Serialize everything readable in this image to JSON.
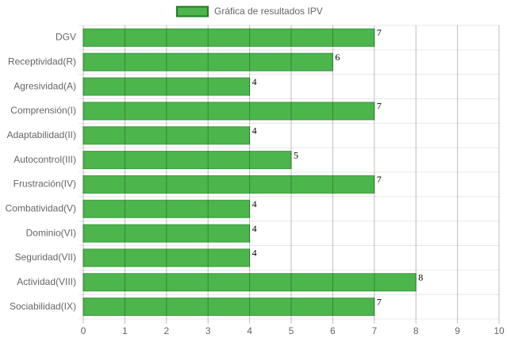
{
  "chart_data": {
    "type": "bar",
    "orientation": "horizontal",
    "categories": [
      "DGV",
      "Receptividad(R)",
      "Agresividad(A)",
      "Comprensión(I)",
      "Adaptabilidad(II)",
      "Autocontrol(III)",
      "Frustración(IV)",
      "Combatividad(V)",
      "Dominio(VI)",
      "Seguridad(VII)",
      "Actividad(VIII)",
      "Sociabilidad(IX)"
    ],
    "series": [
      {
        "name": "Gráfica de resultados IPV",
        "color": "#4cb54c",
        "values": [
          7,
          6,
          4,
          7,
          4,
          5,
          7,
          4,
          4,
          4,
          8,
          7
        ]
      }
    ],
    "xlim": [
      0,
      10
    ],
    "xticks": [
      0,
      1,
      2,
      3,
      4,
      5,
      6,
      7,
      8,
      9,
      10
    ],
    "grid": true,
    "legend": "top"
  }
}
